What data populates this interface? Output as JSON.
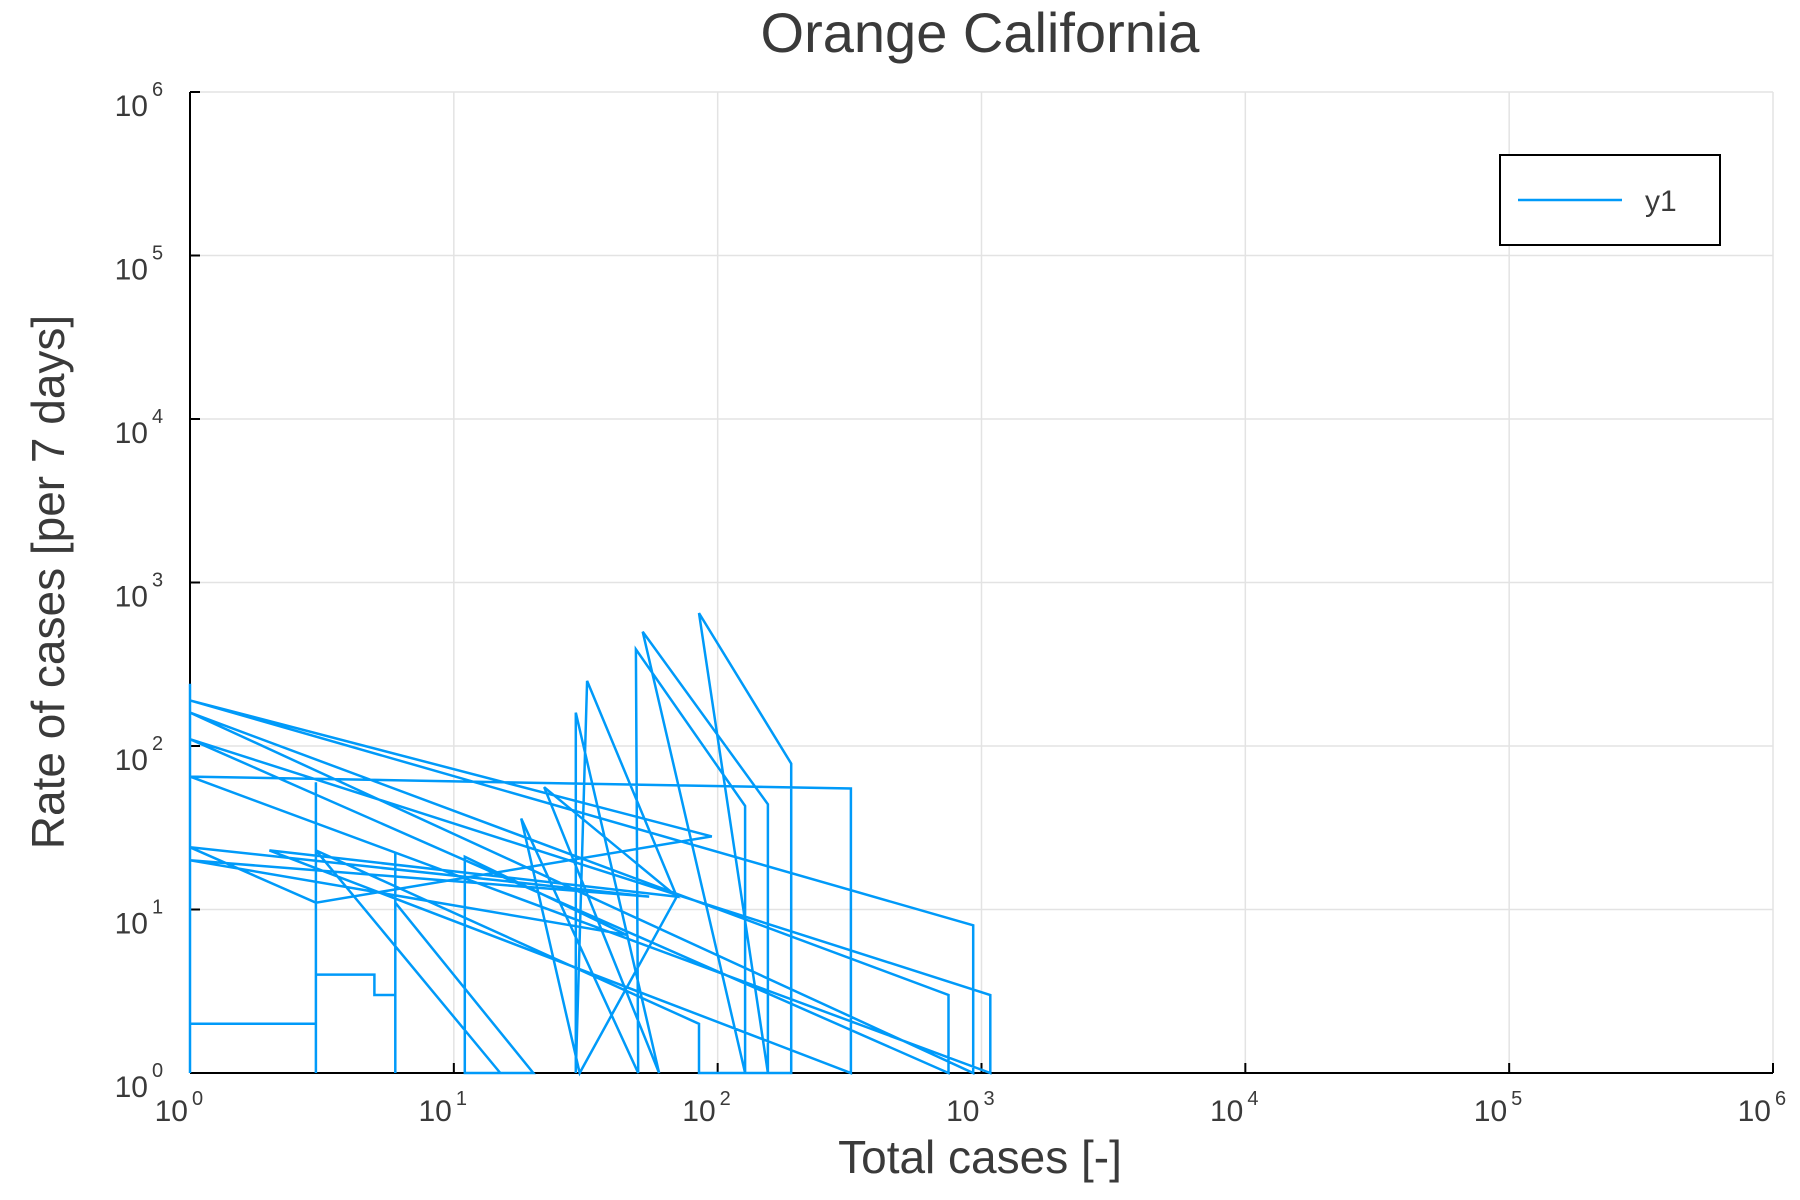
{
  "chart_data": {
    "type": "line",
    "title": "Orange California",
    "xlabel": "Total cases [-]",
    "ylabel": "Rate of cases [per 7 days]",
    "xscale": "log",
    "yscale": "log",
    "xlim": [
      1,
      1000000
    ],
    "ylim": [
      1,
      1000000
    ],
    "xticks": [
      {
        "base": "10",
        "exp": "0",
        "value": 1
      },
      {
        "base": "10",
        "exp": "1",
        "value": 10
      },
      {
        "base": "10",
        "exp": "2",
        "value": 100
      },
      {
        "base": "10",
        "exp": "3",
        "value": 1000
      },
      {
        "base": "10",
        "exp": "4",
        "value": 10000
      },
      {
        "base": "10",
        "exp": "5",
        "value": 100000
      },
      {
        "base": "10",
        "exp": "6",
        "value": 1000000
      }
    ],
    "yticks": [
      {
        "base": "10",
        "exp": "0",
        "value": 1
      },
      {
        "base": "10",
        "exp": "1",
        "value": 10
      },
      {
        "base": "10",
        "exp": "2",
        "value": 100
      },
      {
        "base": "10",
        "exp": "3",
        "value": 1000
      },
      {
        "base": "10",
        "exp": "4",
        "value": 10000
      },
      {
        "base": "10",
        "exp": "5",
        "value": 100000
      },
      {
        "base": "10",
        "exp": "6",
        "value": 1000000
      }
    ],
    "grid": true,
    "legend_position": "top-right",
    "series": [
      {
        "name": "y1",
        "color": "#009af9",
        "points": [
          [
            1,
            1
          ],
          [
            1,
            240
          ],
          [
            1,
            1
          ],
          [
            1,
            2
          ],
          [
            3,
            2
          ],
          [
            3,
            1
          ],
          [
            3,
            60
          ],
          [
            3,
            1
          ],
          [
            3,
            4
          ],
          [
            5,
            4
          ],
          [
            5,
            3
          ],
          [
            6,
            3
          ],
          [
            6,
            1
          ],
          [
            6,
            22
          ],
          [
            6,
            1
          ],
          [
            6,
            11
          ],
          [
            20,
            1
          ],
          [
            11,
            1
          ],
          [
            11,
            21
          ],
          [
            45,
            7
          ],
          [
            1,
            20
          ],
          [
            55,
            12
          ],
          [
            1,
            24
          ],
          [
            3,
            11
          ],
          [
            95,
            28
          ],
          [
            1,
            190
          ],
          [
            930,
            8
          ],
          [
            930,
            1
          ],
          [
            1,
            160
          ],
          [
            750,
            3
          ],
          [
            750,
            1
          ],
          [
            1,
            110
          ],
          [
            1080,
            3
          ],
          [
            1080,
            1
          ],
          [
            1,
            65
          ],
          [
            320,
            55
          ],
          [
            320,
            1
          ],
          [
            2,
            23
          ],
          [
            70,
            12
          ],
          [
            22,
            56
          ],
          [
            60,
            1
          ],
          [
            29,
            160
          ],
          [
            29,
            1
          ],
          [
            32,
            250
          ],
          [
            70,
            12
          ],
          [
            30,
            1
          ],
          [
            18,
            36
          ],
          [
            50,
            1
          ],
          [
            49,
            390
          ],
          [
            127,
            43
          ],
          [
            127,
            1
          ],
          [
            52,
            500
          ],
          [
            155,
            44
          ],
          [
            155,
            1
          ],
          [
            85,
            650
          ],
          [
            190,
            78
          ],
          [
            190,
            1
          ],
          [
            85,
            1
          ],
          [
            85,
            2
          ],
          [
            3,
            23
          ],
          [
            15,
            1
          ]
        ]
      }
    ]
  }
}
